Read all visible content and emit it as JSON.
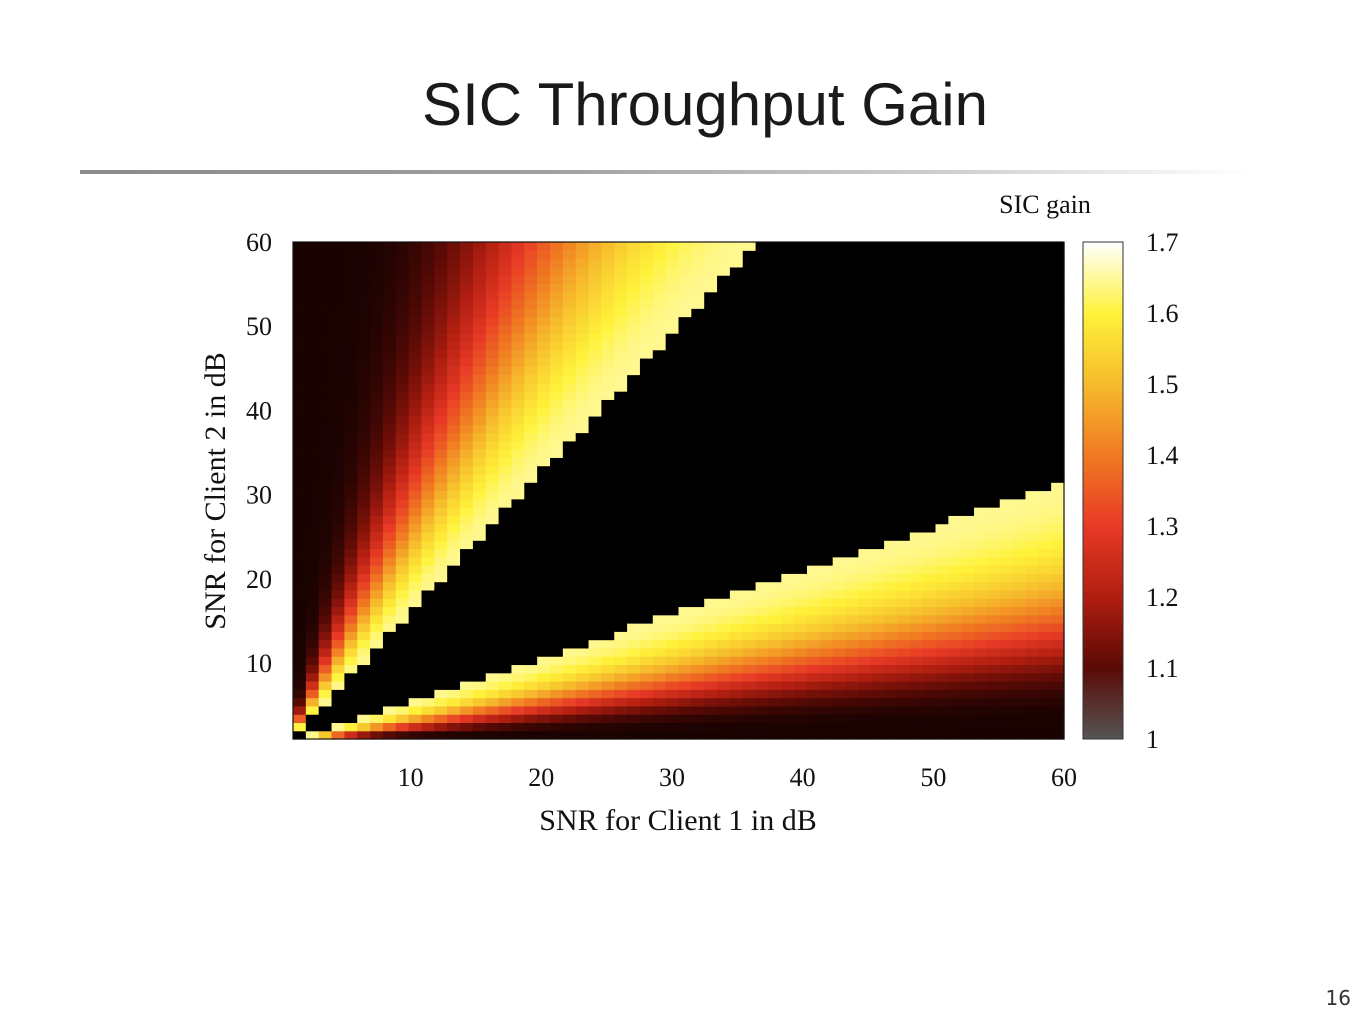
{
  "slide": {
    "title": "SIC Throughput Gain",
    "page_number": "16"
  },
  "chart_data": {
    "type": "heatmap",
    "title": "",
    "xlabel": "SNR for Client 1 in dB",
    "ylabel": "SNR for Client 2 in dB",
    "xlim": [
      1,
      60
    ],
    "ylim": [
      1,
      60
    ],
    "x_ticks": [
      10,
      20,
      30,
      40,
      50,
      60
    ],
    "y_ticks": [
      10,
      20,
      30,
      40,
      50,
      60
    ],
    "grid_step": 1,
    "colorbar": {
      "label": "SIC gain",
      "range": [
        1,
        1.7
      ],
      "ticks": [
        "1.7",
        "1.6",
        "1.5",
        "1.4",
        "1.3",
        "1.2",
        "1.1",
        "1"
      ]
    },
    "colormap": [
      "#000000",
      "#5a0a05",
      "#b01e10",
      "#e83a26",
      "#f07a22",
      "#f6bb2c",
      "#fff23a",
      "#ffffff"
    ],
    "no_gain_color": "#000000",
    "legend_position": "right"
  }
}
